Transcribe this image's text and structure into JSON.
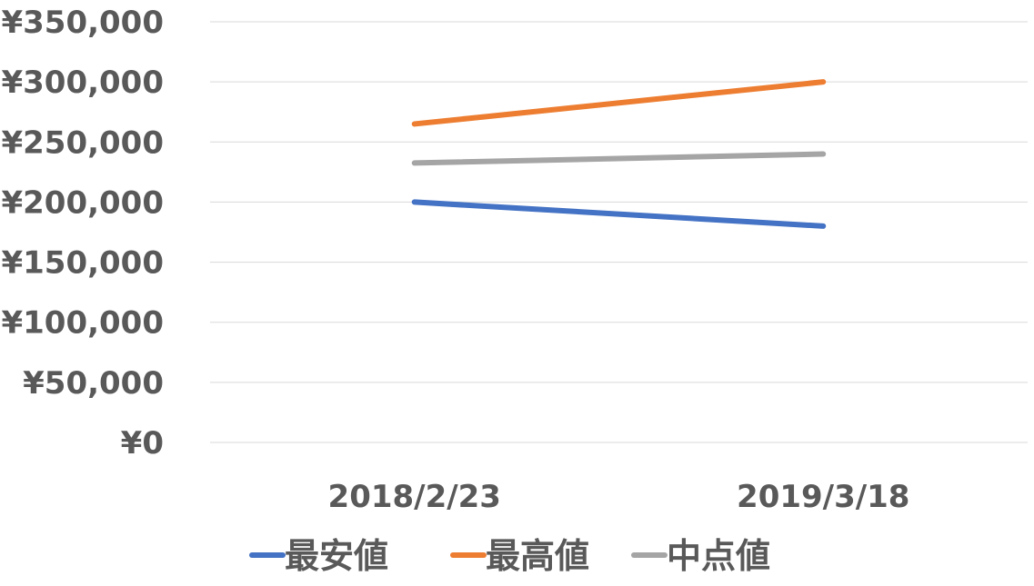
{
  "chart_data": {
    "type": "line",
    "title": "",
    "xlabel": "",
    "ylabel": "",
    "categories": [
      "2018/2/23",
      "2019/3/18"
    ],
    "y_ticks": [
      "¥0",
      "¥50,000",
      "¥100,000",
      "¥150,000",
      "¥200,000",
      "¥250,000",
      "¥300,000",
      "¥350,000"
    ],
    "ylim": [
      0,
      350000
    ],
    "y_tick_step": 50000,
    "grid": true,
    "legend_position": "bottom",
    "series": [
      {
        "name": "最安値",
        "values": [
          200000,
          180000
        ],
        "color": "#4472C4"
      },
      {
        "name": "最高値",
        "values": [
          265000,
          300000
        ],
        "color": "#ED7D31"
      },
      {
        "name": "中点値",
        "values": [
          232500,
          240000
        ],
        "color": "#A5A5A5"
      }
    ]
  }
}
